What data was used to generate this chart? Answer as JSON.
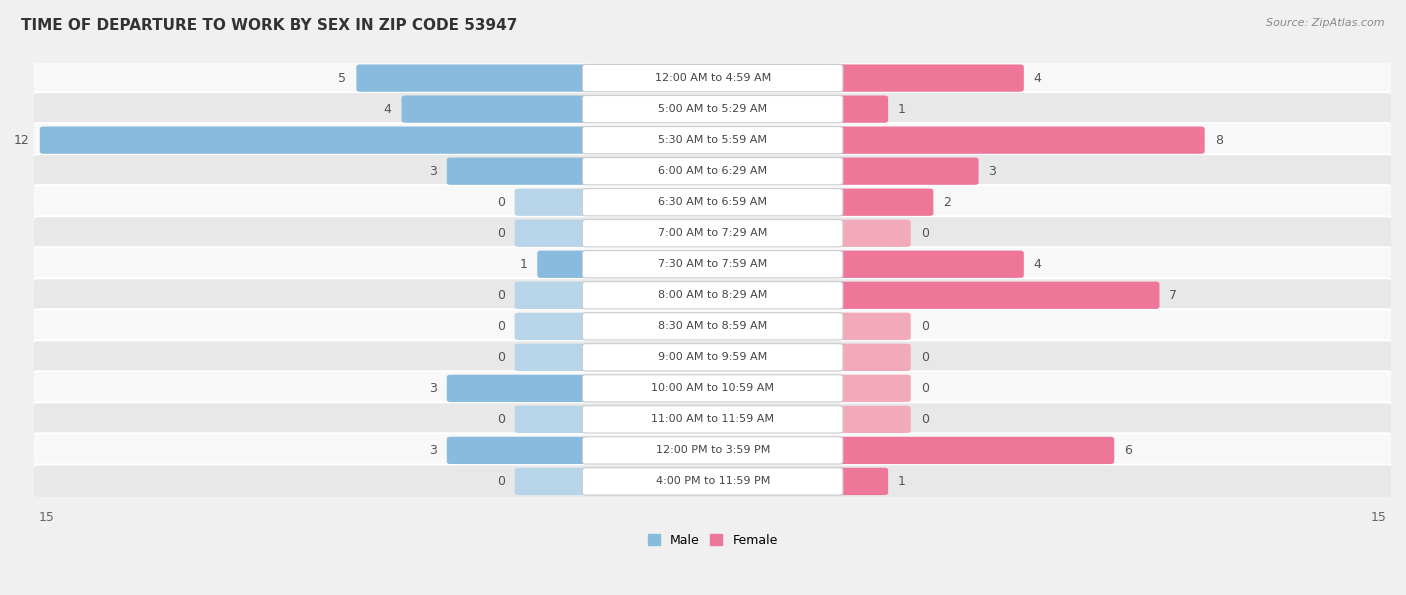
{
  "title": "TIME OF DEPARTURE TO WORK BY SEX IN ZIP CODE 53947",
  "source": "Source: ZipAtlas.com",
  "categories": [
    "12:00 AM to 4:59 AM",
    "5:00 AM to 5:29 AM",
    "5:30 AM to 5:59 AM",
    "6:00 AM to 6:29 AM",
    "6:30 AM to 6:59 AM",
    "7:00 AM to 7:29 AM",
    "7:30 AM to 7:59 AM",
    "8:00 AM to 8:29 AM",
    "8:30 AM to 8:59 AM",
    "9:00 AM to 9:59 AM",
    "10:00 AM to 10:59 AM",
    "11:00 AM to 11:59 AM",
    "12:00 PM to 3:59 PM",
    "4:00 PM to 11:59 PM"
  ],
  "male_values": [
    5,
    4,
    12,
    3,
    0,
    0,
    1,
    0,
    0,
    0,
    3,
    0,
    3,
    0
  ],
  "female_values": [
    4,
    1,
    8,
    3,
    2,
    0,
    4,
    7,
    0,
    0,
    0,
    0,
    6,
    1
  ],
  "male_color": "#88bbdd",
  "female_color": "#ee7799",
  "male_color_light": "#b8d4e8",
  "female_color_light": "#f2aabb",
  "axis_max": 15,
  "bg_color": "#f0f0f0",
  "row_bg_light": "#f8f8f8",
  "row_bg_dark": "#e8e8e8",
  "label_fontsize": 8,
  "value_fontsize": 9,
  "title_fontsize": 11
}
